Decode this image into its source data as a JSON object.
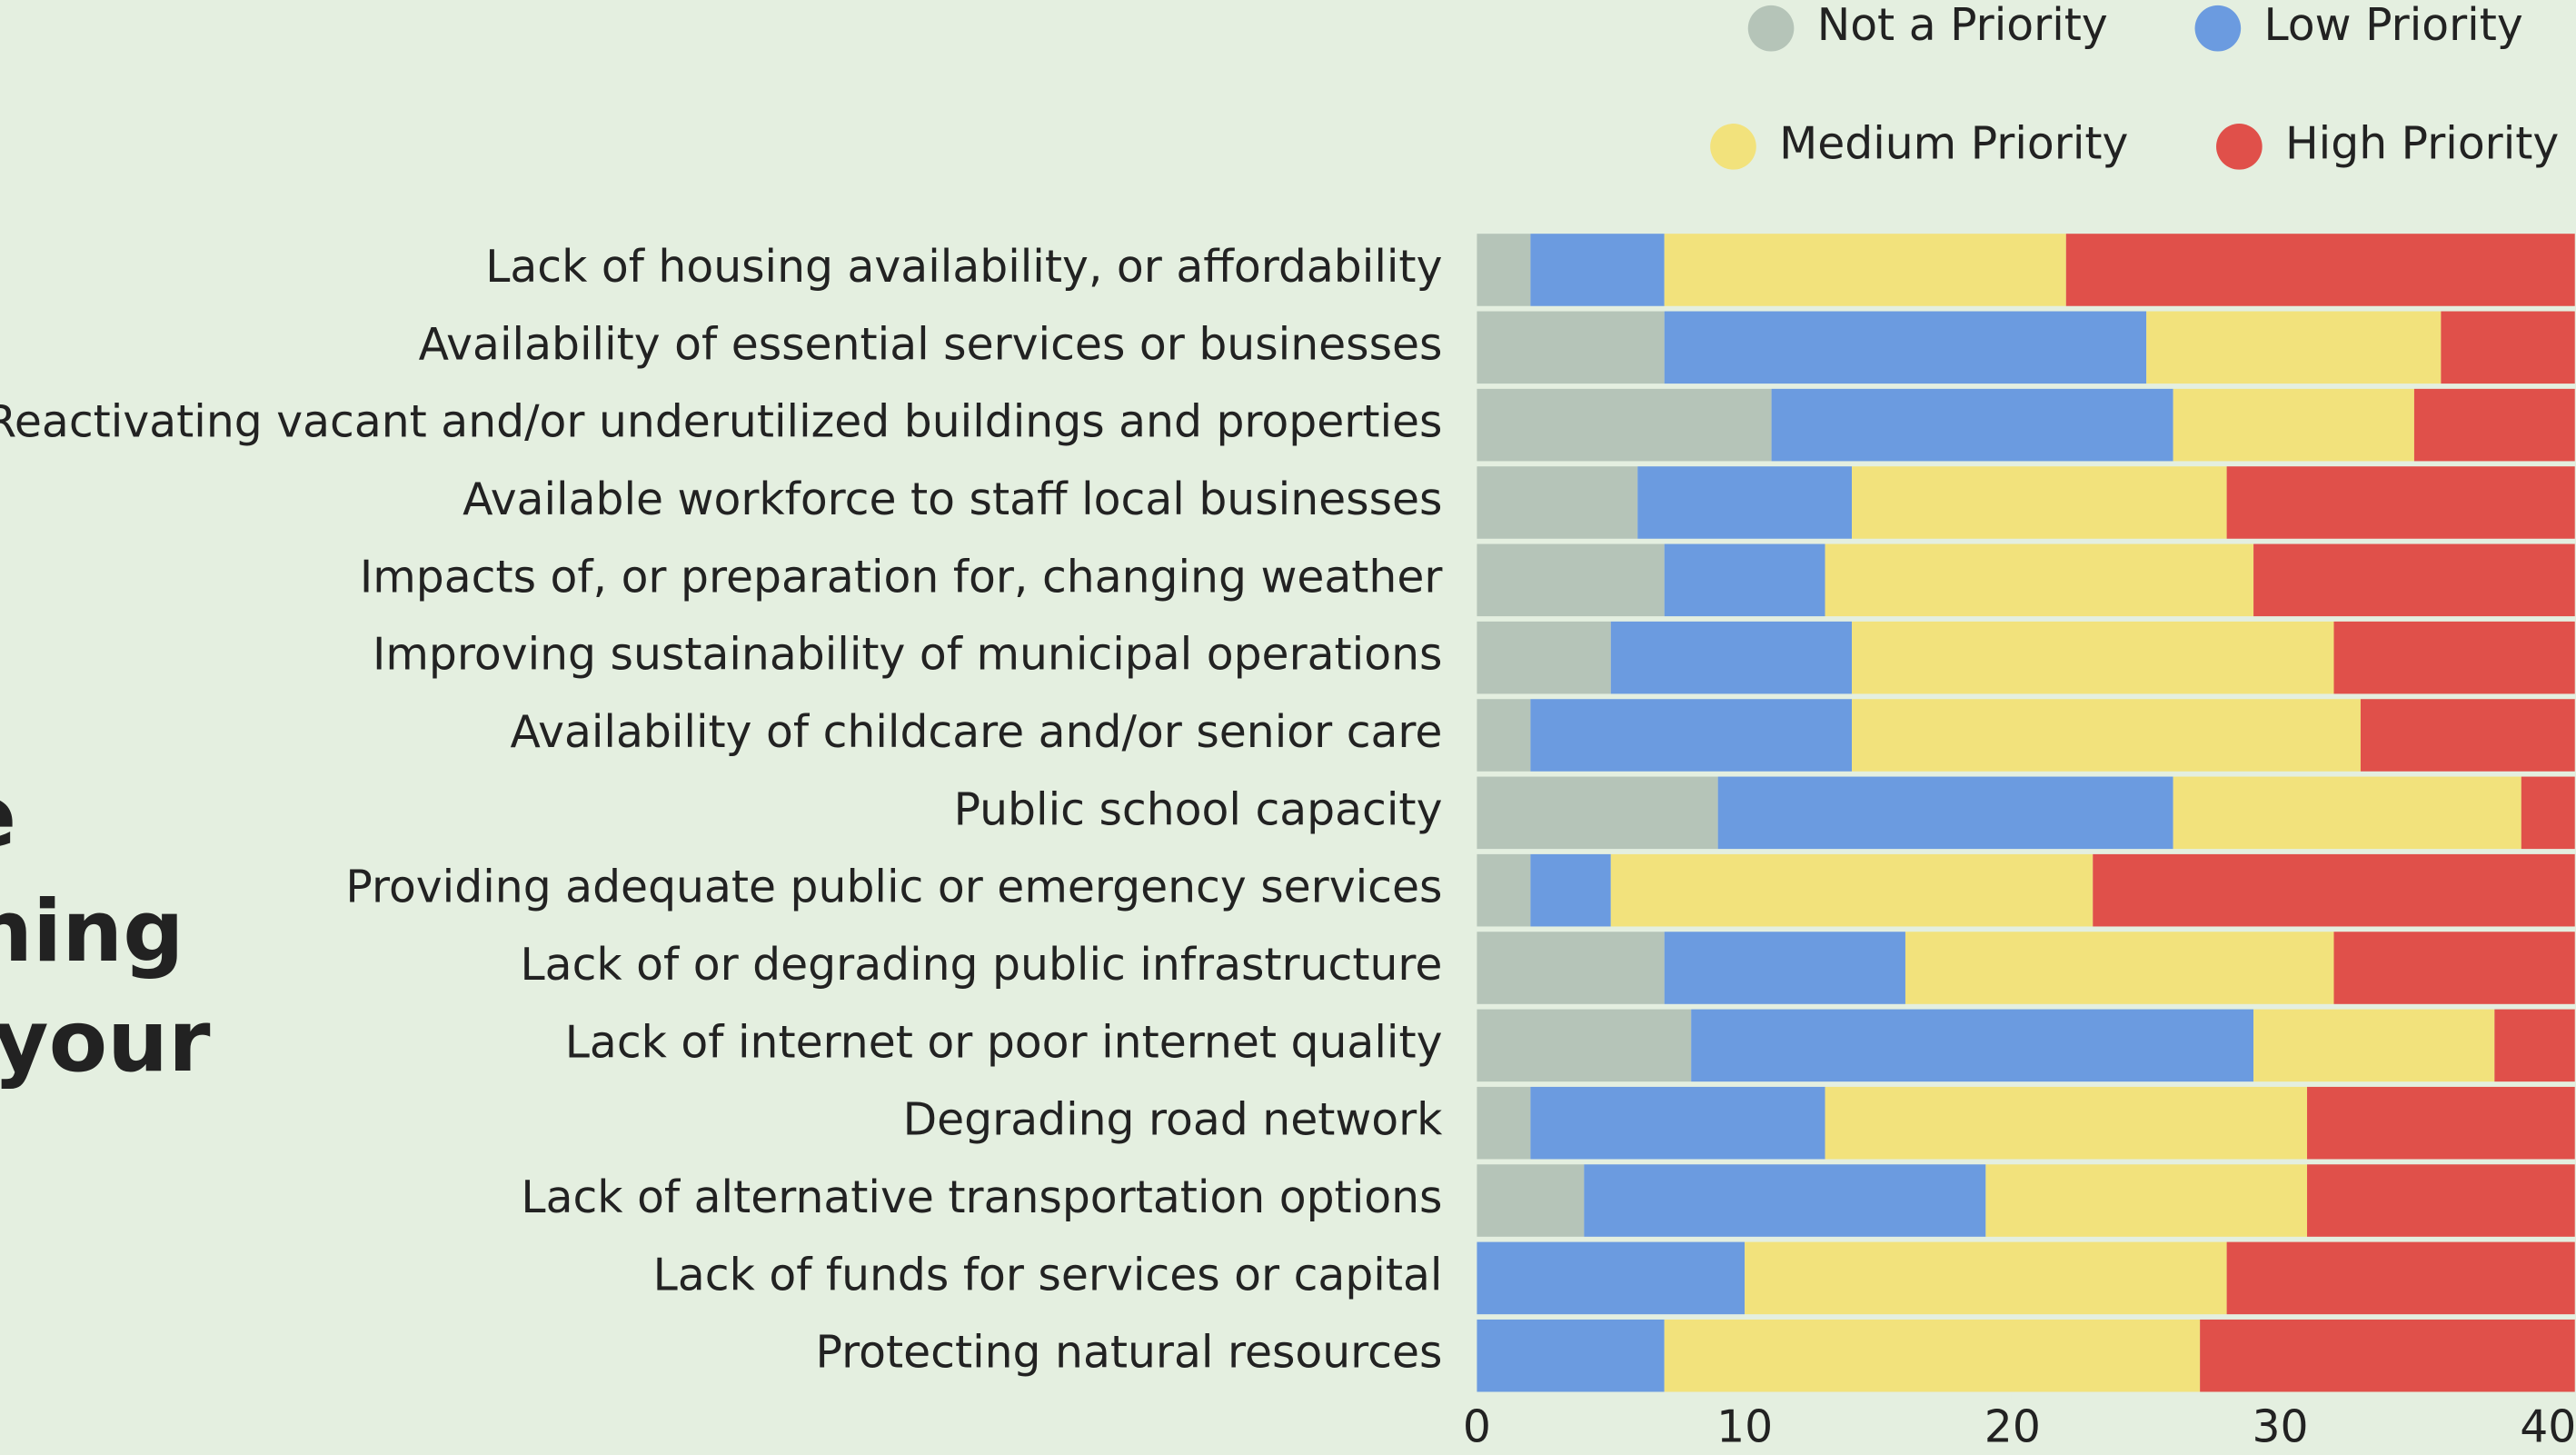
{
  "chart_data": {
    "type": "stacked_bar_horizontal",
    "title_lines": [
      "e",
      "ning",
      "your"
    ],
    "categories": [
      "Lack of housing availability, or affordability",
      "Availability of essential services or businesses",
      "Reactivating vacant and/or underutilized buildings and properties",
      "Available workforce to staff local businesses",
      "Impacts of, or preparation for, changing weather",
      "Improving sustainability of municipal operations",
      "Availability of childcare and/or senior care",
      "Public school capacity",
      "Providing adequate public or emergency services",
      "Lack of or degrading public infrastructure",
      "Lack of internet or poor internet quality",
      "Degrading road network",
      "Lack of alternative transportation options",
      "Lack of funds for services or capital",
      "Protecting natural resources"
    ],
    "series": [
      {
        "name": "Not a Priority",
        "color": "#b5c4b8",
        "values": [
          2,
          7,
          11,
          6,
          7,
          5,
          2,
          9,
          2,
          7,
          8,
          2,
          4,
          0,
          0
        ]
      },
      {
        "name": "Low Priority",
        "color": "#6b9be0",
        "values": [
          5,
          18,
          15,
          8,
          6,
          9,
          12,
          17,
          3,
          9,
          21,
          11,
          15,
          10,
          7
        ]
      },
      {
        "name": "Medium Priority",
        "color": "#f2e27c",
        "values": [
          15,
          11,
          9,
          14,
          16,
          18,
          19,
          13,
          18,
          16,
          9,
          18,
          12,
          18,
          20
        ]
      },
      {
        "name": "High Priority",
        "color": "#e0504a",
        "values": [
          19,
          5,
          6,
          13,
          12,
          9,
          8,
          2,
          18,
          9,
          3,
          10,
          10,
          13,
          14
        ]
      }
    ],
    "xlim": [
      0,
      41
    ],
    "xticks": [
      0,
      10,
      20,
      30,
      40
    ]
  }
}
